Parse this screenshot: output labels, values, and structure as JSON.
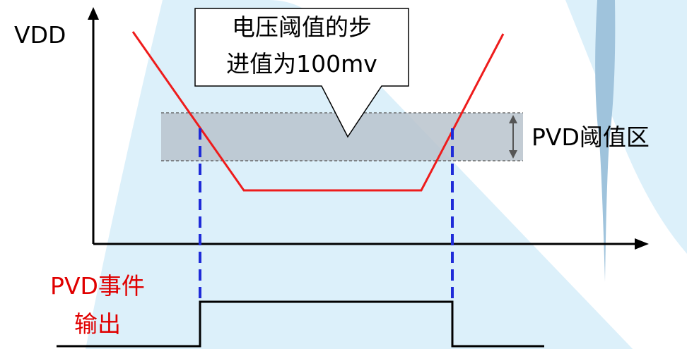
{
  "labels": {
    "vdd": "VDD",
    "threshold_zone": "PVD阈值区",
    "event_output_line1": "PVD事件",
    "event_output_line2": "输出",
    "callout_line1": "电压阈值的步",
    "callout_line2": "进值为100mv"
  },
  "colors": {
    "voltage_curve": "#ee1c1c",
    "event_text": "#e00000",
    "guide_lines": "#1f2bd8",
    "threshold_band": "#b9c3cc",
    "background_shape": "#d9eef9"
  }
}
